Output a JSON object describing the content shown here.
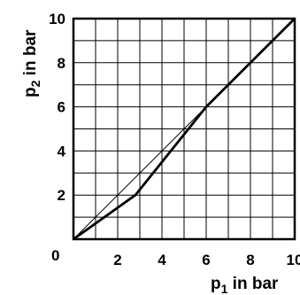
{
  "chart_data": {
    "type": "line",
    "xlabel": {
      "main": "p",
      "sub": "1",
      "rest": " in bar"
    },
    "ylabel": {
      "main": "p",
      "sub": "2",
      "rest": " in bar"
    },
    "xlim": [
      0,
      10
    ],
    "ylim": [
      0,
      10
    ],
    "x_ticks": [
      "2",
      "4",
      "6",
      "8",
      "10"
    ],
    "y_ticks": [
      "2",
      "4",
      "6",
      "8",
      "10"
    ],
    "origin_label": "0",
    "grid": true,
    "series": [
      {
        "style": "thick",
        "x": [
          0,
          2.8,
          6,
          10
        ],
        "y": [
          0,
          2,
          6,
          10
        ]
      },
      {
        "style": "thin",
        "x": [
          0,
          10
        ],
        "y": [
          0,
          10
        ]
      }
    ],
    "colors": {
      "line": "#000000",
      "grid": "#000000"
    }
  }
}
